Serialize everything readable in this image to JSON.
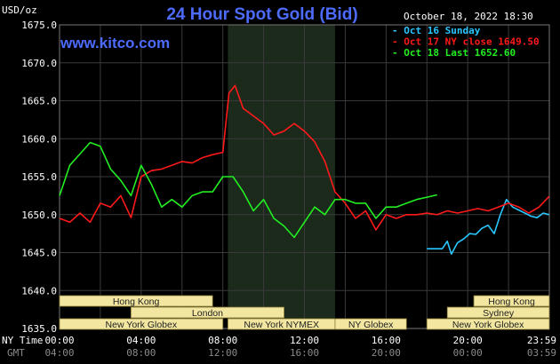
{
  "header": {
    "unit_label": "USD/oz",
    "title": "24 Hour Spot Gold (Bid)",
    "datetime": "October 18, 2022 18:30",
    "site": "www.kitco.com"
  },
  "legend": [
    {
      "label": "Oct 16 Sunday",
      "color": "#29c6ff"
    },
    {
      "label": "Oct 17 NY close 1649.50",
      "color": "#ff1a1a"
    },
    {
      "label": "Oct 18 Last 1652.60",
      "color": "#22ee22"
    }
  ],
  "axis_labels": {
    "ny_time": "NY Time",
    "gmt": "GMT"
  },
  "sessions": [
    {
      "label": "Hong Kong",
      "start": 0,
      "end": 7.5,
      "row": 0
    },
    {
      "label": "London",
      "start": 3.5,
      "end": 11.0,
      "row": 1
    },
    {
      "label": "New York Globex",
      "start": 0,
      "end": 8.0,
      "row": 2
    },
    {
      "label": "New York NYMEX",
      "start": 8.25,
      "end": 13.5,
      "row": 2
    },
    {
      "label": "NY Globex",
      "start": 13.5,
      "end": 17.0,
      "row": 2
    },
    {
      "label": "Hong Kong",
      "start": 20.3,
      "end": 24,
      "row": 0
    },
    {
      "label": "Sydney",
      "start": 19.0,
      "end": 24,
      "row": 1
    },
    {
      "label": "New York Globex",
      "start": 18.0,
      "end": 24,
      "row": 2
    }
  ],
  "colors": {
    "background": "#000000",
    "grid": "#3a3a3a",
    "nymex_shade": "#1b2a1b",
    "session_box": "#f2e6a0"
  },
  "chart_data": {
    "type": "line",
    "title": "24 Hour Spot Gold (Bid)",
    "ylabel": "USD/oz",
    "xlabel": "NY Time",
    "ylim": [
      1635,
      1675
    ],
    "xlim": [
      0,
      24
    ],
    "y_ticks": [
      "1675.0",
      "1670.0",
      "1665.0",
      "1660.0",
      "1655.0",
      "1650.0",
      "1645.0",
      "1640.0",
      "1635.0"
    ],
    "x_ticks_ny": [
      "00:00",
      "04:00",
      "08:00",
      "12:00",
      "16:00",
      "20:00",
      "23:59"
    ],
    "x_ticks_gmt": [
      "04:00",
      "08:00",
      "12:00",
      "16:00",
      "20:00",
      "00:00",
      "03:59"
    ],
    "grid": true,
    "legend_position": "top-right",
    "nymex_shaded_hours": [
      8.25,
      13.5
    ],
    "series": [
      {
        "name": "Oct 16 Sunday",
        "x": [
          18.0,
          18.75,
          19.0,
          19.2,
          19.5,
          19.8,
          20.1,
          20.4,
          20.7,
          21.0,
          21.3,
          21.6,
          21.9,
          22.2,
          22.5,
          22.8,
          23.1,
          23.4,
          23.7,
          23.99
        ],
        "y": [
          1645.5,
          1645.5,
          1646.5,
          1644.8,
          1646.3,
          1646.8,
          1647.5,
          1647.4,
          1648.2,
          1648.6,
          1647.5,
          1650.0,
          1652.0,
          1651.0,
          1650.6,
          1650.2,
          1649.8,
          1649.6,
          1650.2,
          1650.0
        ]
      },
      {
        "name": "Oct 17 NY close 1649.50",
        "x": [
          0,
          0.5,
          1.0,
          1.5,
          2.0,
          2.5,
          3.0,
          3.5,
          4.0,
          4.5,
          5.0,
          5.5,
          6.0,
          6.5,
          7.0,
          7.5,
          8.0,
          8.3,
          8.6,
          9.0,
          9.5,
          10.0,
          10.5,
          11.0,
          11.5,
          12.0,
          12.5,
          13.0,
          13.5,
          14.0,
          14.5,
          15.0,
          15.5,
          16.0,
          16.5,
          17.0,
          17.5,
          18.0,
          18.5,
          19.0,
          19.5,
          20.0,
          20.5,
          21.0,
          21.5,
          22.0,
          22.5,
          23.0,
          23.5,
          23.99
        ],
        "y": [
          1649.5,
          1649.0,
          1650.2,
          1649.0,
          1651.5,
          1651.0,
          1652.5,
          1649.6,
          1655.0,
          1655.8,
          1656.0,
          1656.5,
          1657.0,
          1656.8,
          1657.5,
          1657.9,
          1658.2,
          1666.0,
          1667.0,
          1664.0,
          1663.0,
          1662.0,
          1660.5,
          1661.0,
          1662.0,
          1661.0,
          1659.6,
          1657.0,
          1653.0,
          1651.5,
          1649.5,
          1650.5,
          1648.0,
          1650.0,
          1649.5,
          1650.0,
          1650.0,
          1650.2,
          1650.0,
          1650.5,
          1650.2,
          1650.5,
          1650.8,
          1650.5,
          1651.0,
          1651.5,
          1651.0,
          1650.2,
          1651.0,
          1652.4
        ]
      },
      {
        "name": "Oct 18 Last 1652.60",
        "x": [
          0,
          0.5,
          1.0,
          1.5,
          2.0,
          2.5,
          3.0,
          3.5,
          4.0,
          4.5,
          5.0,
          5.5,
          6.0,
          6.5,
          7.0,
          7.5,
          8.0,
          8.5,
          9.0,
          9.5,
          10.0,
          10.5,
          11.0,
          11.5,
          12.0,
          12.5,
          13.0,
          13.5,
          14.0,
          14.5,
          15.0,
          15.5,
          16.0,
          16.5,
          17.0,
          17.5,
          18.0,
          18.5
        ],
        "y": [
          1652.5,
          1656.5,
          1658.0,
          1659.5,
          1659.0,
          1656.0,
          1654.5,
          1652.5,
          1656.5,
          1654.0,
          1651.0,
          1652.0,
          1651.0,
          1652.5,
          1653.0,
          1653.0,
          1655.0,
          1655.0,
          1653.0,
          1650.5,
          1652.0,
          1649.5,
          1648.5,
          1647.0,
          1649.0,
          1651.0,
          1650.0,
          1652.0,
          1652.0,
          1651.5,
          1651.5,
          1649.5,
          1651.0,
          1651.0,
          1651.5,
          1652.0,
          1652.3,
          1652.6
        ]
      }
    ]
  }
}
